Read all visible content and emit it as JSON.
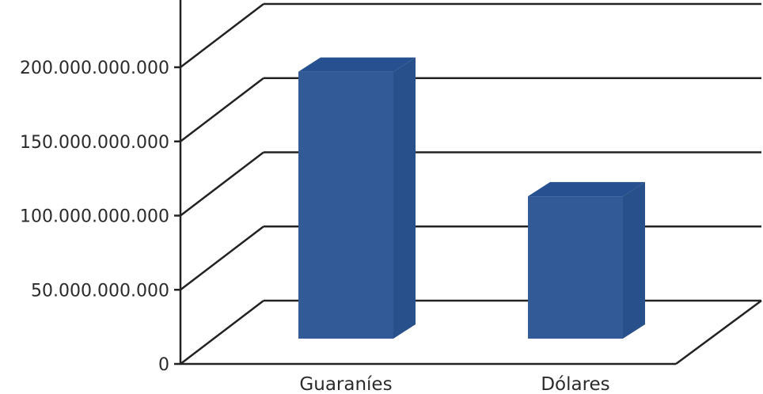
{
  "chart_data": {
    "type": "bar",
    "categories": [
      "Guaraníes",
      "Dólares"
    ],
    "values": [
      197000000000,
      113000000000
    ],
    "ylim": [
      0,
      200000000000
    ],
    "yticks": [
      0,
      50000000000,
      100000000000,
      150000000000,
      200000000000
    ],
    "ytick_labels": [
      "0",
      "50.000.000.000",
      "100.000.000.000",
      "150.000.000.000",
      "200.000.000.000"
    ],
    "grid": true,
    "style": "3d",
    "colors": {
      "bar_front": "#325a97",
      "bar_side": "#28508a",
      "bar_top": "#26508f",
      "axis": "#222222"
    }
  }
}
